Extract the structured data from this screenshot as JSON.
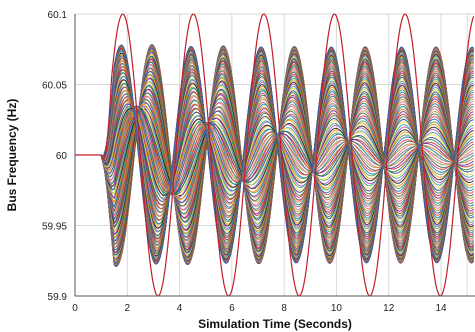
{
  "chart_data": {
    "type": "line",
    "title": "",
    "xlabel": "Simulation Time (Seconds)",
    "ylabel": "Bus Frequency (Hz)",
    "xlim": [
      0,
      15.3
    ],
    "ylim": [
      59.9,
      60.1
    ],
    "xticks": [
      0,
      2,
      4,
      6,
      8,
      10,
      12,
      14
    ],
    "yticks": [
      59.9,
      59.95,
      60,
      60.05,
      60.1
    ],
    "xtick_labels": [
      "0",
      "2",
      "4",
      "6",
      "8",
      "10",
      "12",
      "14"
    ],
    "ytick_labels": [
      "59.9",
      "59.95",
      "60",
      "60.05",
      "60.1"
    ],
    "grid": true,
    "legend": "none",
    "nominal_frequency": 60,
    "disturbance_time": 1.0,
    "series_count": 120,
    "envelope": {
      "mode_a_period": 2.7,
      "mode_a_peak": 60.1,
      "mode_a_trough": 59.9,
      "mode_b_period": 2.7,
      "mode_b_first_peak": 60.043,
      "mode_b_decay_end": 60.006
    },
    "colors": {
      "outer_curve": "#c0202a",
      "palette": [
        "#1f3a93",
        "#2e7d32",
        "#c62828",
        "#6a1b9a",
        "#ef6c00",
        "#00838f",
        "#8d6e63",
        "#f06292",
        "#9e9d24",
        "#455a64",
        "#e53935",
        "#1565c0",
        "#43a047",
        "#fb8c00",
        "#111111",
        "#ab47bc",
        "#26a69a",
        "#fdd835"
      ]
    }
  }
}
